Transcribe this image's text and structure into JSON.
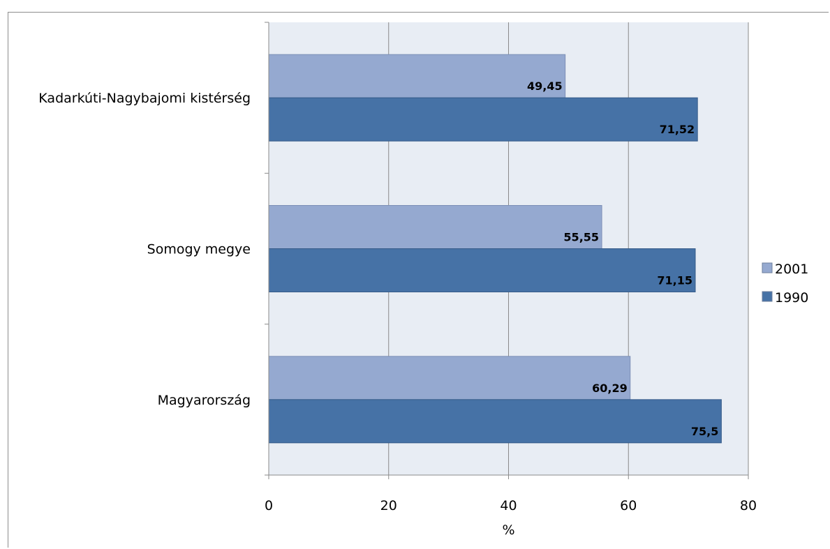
{
  "chart_data": {
    "type": "bar",
    "orientation": "horizontal",
    "categories": [
      "Kadarkúti-Nagybajomi kistérség",
      "Somogy megye",
      "Magyarország"
    ],
    "series": [
      {
        "name": "2001",
        "values": [
          49.45,
          55.55,
          60.29
        ],
        "labels": [
          "49,45",
          "55,55",
          "60,29"
        ],
        "color": "#95a9d0"
      },
      {
        "name": "1990",
        "values": [
          71.52,
          71.15,
          75.5
        ],
        "labels": [
          "71,52",
          "71,15",
          "75,5"
        ],
        "color": "#4672a6"
      }
    ],
    "xlabel": "%",
    "xlim": [
      0,
      80
    ],
    "xticks": [
      0,
      20,
      40,
      60,
      80
    ],
    "xtick_labels": [
      "0",
      "20",
      "40",
      "60",
      "80"
    ],
    "grid": true,
    "plot_background": "#e8edf4",
    "legend_position": "right",
    "legend_order": [
      "2001",
      "1990"
    ]
  }
}
